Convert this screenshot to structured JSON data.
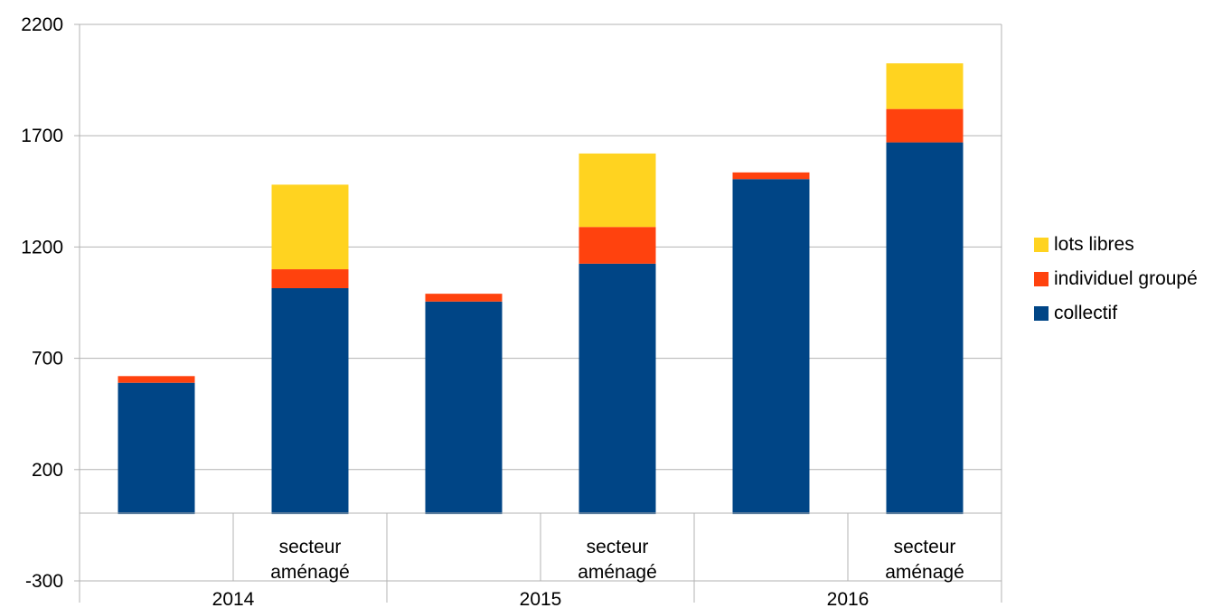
{
  "chart_data": {
    "type": "bar",
    "stacked": true,
    "title": "",
    "xlabel": "",
    "ylabel": "",
    "ylim": [
      -300,
      2200
    ],
    "yticks": [
      -300,
      200,
      700,
      1200,
      1700,
      2200
    ],
    "grid": true,
    "legend_position": "right",
    "groups": [
      {
        "label": "2014",
        "categories": [
          "",
          "secteur aménagé"
        ]
      },
      {
        "label": "2015",
        "categories": [
          "",
          "secteur aménagé"
        ]
      },
      {
        "label": "2016",
        "categories": [
          "",
          "secteur aménagé"
        ]
      }
    ],
    "categories": [
      "",
      "secteur aménagé",
      "",
      "secteur aménagé",
      "",
      "secteur aménagé"
    ],
    "category_label_lines": [
      [],
      [
        "secteur",
        "aménagé"
      ],
      [],
      [
        "secteur",
        "aménagé"
      ],
      [],
      [
        "secteur",
        "aménagé"
      ]
    ],
    "series": [
      {
        "name": "collectif",
        "color": "#004586",
        "values": [
          590,
          1015,
          955,
          1125,
          1505,
          1670
        ]
      },
      {
        "name": "individuel groupé",
        "color": "#ff420e",
        "values": [
          30,
          85,
          35,
          165,
          30,
          150
        ]
      },
      {
        "name": "lots libres",
        "color": "#ffd320",
        "values": [
          0,
          380,
          0,
          330,
          0,
          205
        ]
      }
    ]
  }
}
